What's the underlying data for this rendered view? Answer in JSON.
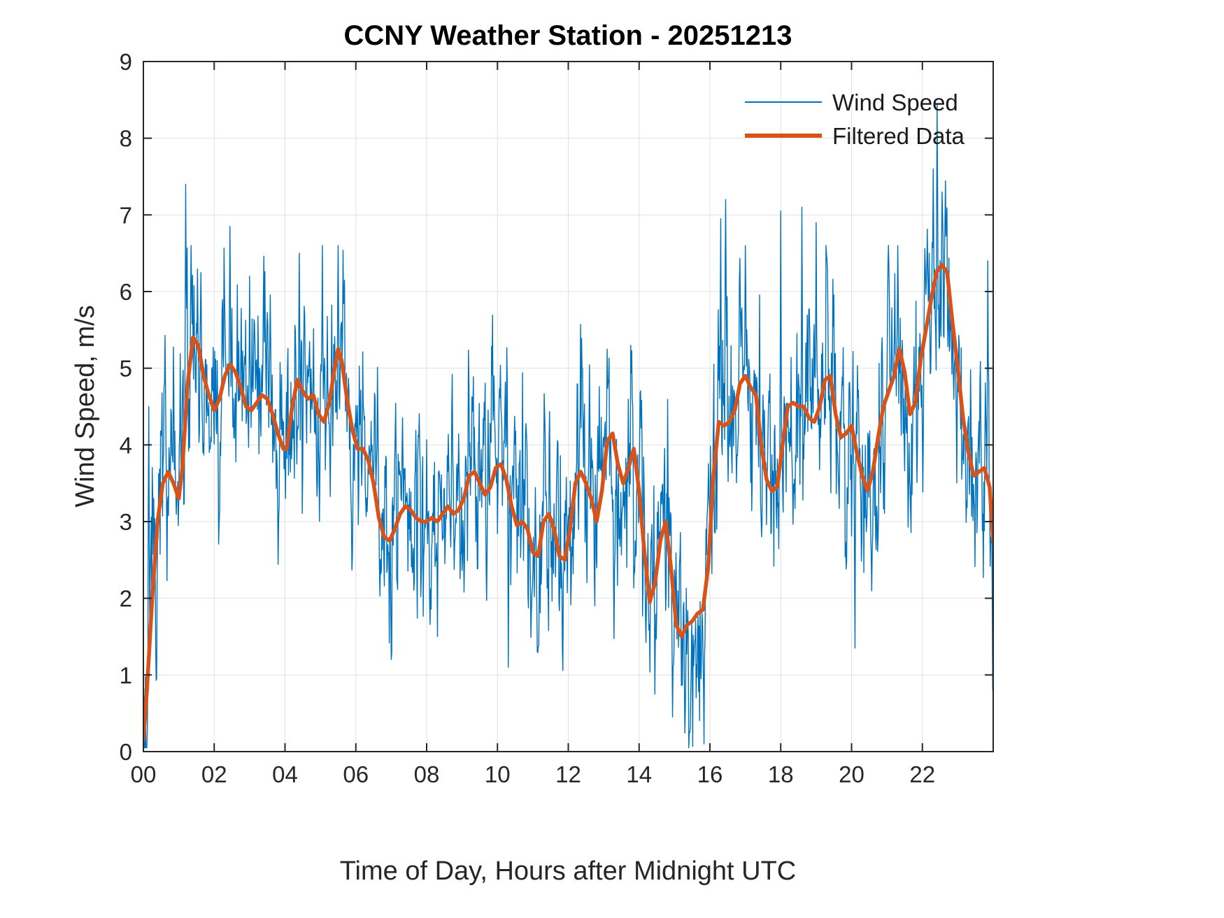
{
  "chart_data": {
    "type": "line",
    "title": "CCNY Weather Station - 20251213",
    "xlabel": "Time of Day, Hours after Midnight UTC",
    "ylabel": "Wind Speed, m/s",
    "xlim": [
      0,
      24
    ],
    "ylim": [
      0,
      9
    ],
    "xtick_values": [
      0,
      2,
      4,
      6,
      8,
      10,
      12,
      14,
      16,
      18,
      20,
      22
    ],
    "xtick_labels": [
      "00",
      "02",
      "04",
      "06",
      "08",
      "10",
      "12",
      "14",
      "16",
      "18",
      "20",
      "22"
    ],
    "ytick_values": [
      0,
      1,
      2,
      3,
      4,
      5,
      6,
      7,
      8,
      9
    ],
    "ytick_labels": [
      "0",
      "1",
      "2",
      "3",
      "4",
      "5",
      "6",
      "7",
      "8",
      "9"
    ],
    "grid": true,
    "axis_color": "#262626",
    "grid_color": "#E0E0E0",
    "legend": {
      "position": "northeast",
      "entries": [
        {
          "label": "Wind Speed",
          "color": "#0072BD",
          "sample_width": 2
        },
        {
          "label": "Filtered Data",
          "color": "#D95319",
          "sample_width": 6
        }
      ]
    },
    "series": [
      {
        "name": "Wind Speed",
        "color": "#0072BD",
        "line_width": 1.4,
        "style": "raw-noisy",
        "noise": {
          "seed": 20251213,
          "ar": 0.55,
          "sigma": 0.6,
          "samples_per_hour": 72,
          "min": 0.05,
          "max": 8.9
        },
        "spikes": [
          [
            0.15,
            4.5
          ],
          [
            1.2,
            7.4
          ],
          [
            1.35,
            6.6
          ],
          [
            2.45,
            6.85
          ],
          [
            3.0,
            6.2
          ],
          [
            4.4,
            6.5
          ],
          [
            5.05,
            6.6
          ],
          [
            5.5,
            6.6
          ],
          [
            7.0,
            1.2
          ],
          [
            8.3,
            1.5
          ],
          [
            9.9,
            4.9
          ],
          [
            10.3,
            1.1
          ],
          [
            12.4,
            5.0
          ],
          [
            13.1,
            5.25
          ],
          [
            14.45,
            0.75
          ],
          [
            14.95,
            0.45
          ],
          [
            15.45,
            0.3
          ],
          [
            15.75,
            0.95
          ],
          [
            16.3,
            6.95
          ],
          [
            16.45,
            7.2
          ],
          [
            17.0,
            6.6
          ],
          [
            18.0,
            7.05
          ],
          [
            18.6,
            7.1
          ],
          [
            19.0,
            6.9
          ],
          [
            20.1,
            1.35
          ],
          [
            21.3,
            6.6
          ],
          [
            22.3,
            7.6
          ],
          [
            22.42,
            8.45
          ],
          [
            22.55,
            7.3
          ],
          [
            23.85,
            6.4
          ],
          [
            23.98,
            0.8
          ]
        ]
      },
      {
        "name": "Filtered Data",
        "color": "#D95319",
        "line_width": 5.5,
        "points": [
          [
            0.0,
            0.15
          ],
          [
            0.1,
            0.8
          ],
          [
            0.25,
            2.0
          ],
          [
            0.4,
            3.0
          ],
          [
            0.55,
            3.5
          ],
          [
            0.7,
            3.65
          ],
          [
            0.85,
            3.5
          ],
          [
            1.0,
            3.3
          ],
          [
            1.1,
            3.7
          ],
          [
            1.25,
            4.8
          ],
          [
            1.4,
            5.4
          ],
          [
            1.55,
            5.3
          ],
          [
            1.7,
            4.9
          ],
          [
            1.85,
            4.65
          ],
          [
            2.0,
            4.45
          ],
          [
            2.15,
            4.6
          ],
          [
            2.3,
            4.9
          ],
          [
            2.45,
            5.05
          ],
          [
            2.6,
            4.95
          ],
          [
            2.75,
            4.75
          ],
          [
            2.9,
            4.5
          ],
          [
            3.05,
            4.45
          ],
          [
            3.2,
            4.55
          ],
          [
            3.35,
            4.65
          ],
          [
            3.5,
            4.6
          ],
          [
            3.65,
            4.4
          ],
          [
            3.8,
            4.15
          ],
          [
            3.95,
            3.95
          ],
          [
            4.05,
            3.95
          ],
          [
            4.2,
            4.5
          ],
          [
            4.35,
            4.85
          ],
          [
            4.5,
            4.7
          ],
          [
            4.65,
            4.6
          ],
          [
            4.8,
            4.65
          ],
          [
            4.95,
            4.4
          ],
          [
            5.1,
            4.3
          ],
          [
            5.25,
            4.55
          ],
          [
            5.4,
            5.0
          ],
          [
            5.5,
            5.25
          ],
          [
            5.6,
            5.1
          ],
          [
            5.75,
            4.6
          ],
          [
            5.9,
            4.2
          ],
          [
            6.05,
            3.95
          ],
          [
            6.2,
            3.95
          ],
          [
            6.35,
            3.8
          ],
          [
            6.5,
            3.5
          ],
          [
            6.65,
            3.05
          ],
          [
            6.8,
            2.8
          ],
          [
            6.95,
            2.75
          ],
          [
            7.1,
            2.9
          ],
          [
            7.25,
            3.1
          ],
          [
            7.4,
            3.2
          ],
          [
            7.55,
            3.15
          ],
          [
            7.7,
            3.05
          ],
          [
            7.85,
            3.0
          ],
          [
            8.0,
            3.0
          ],
          [
            8.15,
            3.05
          ],
          [
            8.3,
            3.0
          ],
          [
            8.45,
            3.1
          ],
          [
            8.6,
            3.2
          ],
          [
            8.75,
            3.1
          ],
          [
            8.9,
            3.15
          ],
          [
            9.05,
            3.3
          ],
          [
            9.2,
            3.6
          ],
          [
            9.35,
            3.65
          ],
          [
            9.5,
            3.5
          ],
          [
            9.65,
            3.35
          ],
          [
            9.8,
            3.45
          ],
          [
            9.95,
            3.7
          ],
          [
            10.1,
            3.75
          ],
          [
            10.25,
            3.55
          ],
          [
            10.4,
            3.2
          ],
          [
            10.55,
            2.95
          ],
          [
            10.7,
            3.0
          ],
          [
            10.85,
            2.9
          ],
          [
            11.0,
            2.6
          ],
          [
            11.15,
            2.55
          ],
          [
            11.3,
            3.0
          ],
          [
            11.45,
            3.1
          ],
          [
            11.6,
            2.9
          ],
          [
            11.75,
            2.55
          ],
          [
            11.9,
            2.5
          ],
          [
            12.05,
            2.9
          ],
          [
            12.2,
            3.5
          ],
          [
            12.35,
            3.65
          ],
          [
            12.5,
            3.5
          ],
          [
            12.65,
            3.3
          ],
          [
            12.8,
            3.0
          ],
          [
            12.95,
            3.4
          ],
          [
            13.1,
            4.05
          ],
          [
            13.25,
            4.15
          ],
          [
            13.4,
            3.75
          ],
          [
            13.55,
            3.5
          ],
          [
            13.7,
            3.7
          ],
          [
            13.85,
            3.95
          ],
          [
            14.0,
            3.4
          ],
          [
            14.15,
            2.6
          ],
          [
            14.3,
            1.95
          ],
          [
            14.45,
            2.2
          ],
          [
            14.6,
            2.75
          ],
          [
            14.75,
            3.0
          ],
          [
            14.9,
            2.4
          ],
          [
            15.05,
            1.65
          ],
          [
            15.2,
            1.5
          ],
          [
            15.35,
            1.65
          ],
          [
            15.5,
            1.7
          ],
          [
            15.65,
            1.8
          ],
          [
            15.8,
            1.85
          ],
          [
            15.95,
            2.4
          ],
          [
            16.1,
            3.6
          ],
          [
            16.25,
            4.3
          ],
          [
            16.4,
            4.25
          ],
          [
            16.55,
            4.3
          ],
          [
            16.7,
            4.45
          ],
          [
            16.85,
            4.8
          ],
          [
            17.0,
            4.9
          ],
          [
            17.15,
            4.75
          ],
          [
            17.3,
            4.65
          ],
          [
            17.45,
            4.0
          ],
          [
            17.6,
            3.55
          ],
          [
            17.75,
            3.4
          ],
          [
            17.9,
            3.45
          ],
          [
            18.05,
            4.0
          ],
          [
            18.2,
            4.5
          ],
          [
            18.35,
            4.55
          ],
          [
            18.5,
            4.5
          ],
          [
            18.65,
            4.5
          ],
          [
            18.8,
            4.35
          ],
          [
            18.95,
            4.3
          ],
          [
            19.1,
            4.5
          ],
          [
            19.25,
            4.85
          ],
          [
            19.4,
            4.9
          ],
          [
            19.55,
            4.4
          ],
          [
            19.7,
            4.1
          ],
          [
            19.85,
            4.15
          ],
          [
            20.0,
            4.25
          ],
          [
            20.15,
            3.9
          ],
          [
            20.3,
            3.6
          ],
          [
            20.45,
            3.4
          ],
          [
            20.6,
            3.65
          ],
          [
            20.75,
            4.1
          ],
          [
            20.9,
            4.5
          ],
          [
            21.05,
            4.7
          ],
          [
            21.2,
            4.9
          ],
          [
            21.35,
            5.25
          ],
          [
            21.5,
            4.95
          ],
          [
            21.65,
            4.4
          ],
          [
            21.8,
            4.55
          ],
          [
            21.95,
            5.1
          ],
          [
            22.1,
            5.5
          ],
          [
            22.25,
            5.9
          ],
          [
            22.4,
            6.25
          ],
          [
            22.55,
            6.35
          ],
          [
            22.7,
            6.25
          ],
          [
            22.85,
            5.6
          ],
          [
            23.0,
            5.0
          ],
          [
            23.15,
            4.35
          ],
          [
            23.3,
            3.9
          ],
          [
            23.45,
            3.6
          ],
          [
            23.6,
            3.65
          ],
          [
            23.75,
            3.7
          ],
          [
            23.9,
            3.45
          ],
          [
            24.0,
            2.75
          ]
        ]
      }
    ]
  }
}
